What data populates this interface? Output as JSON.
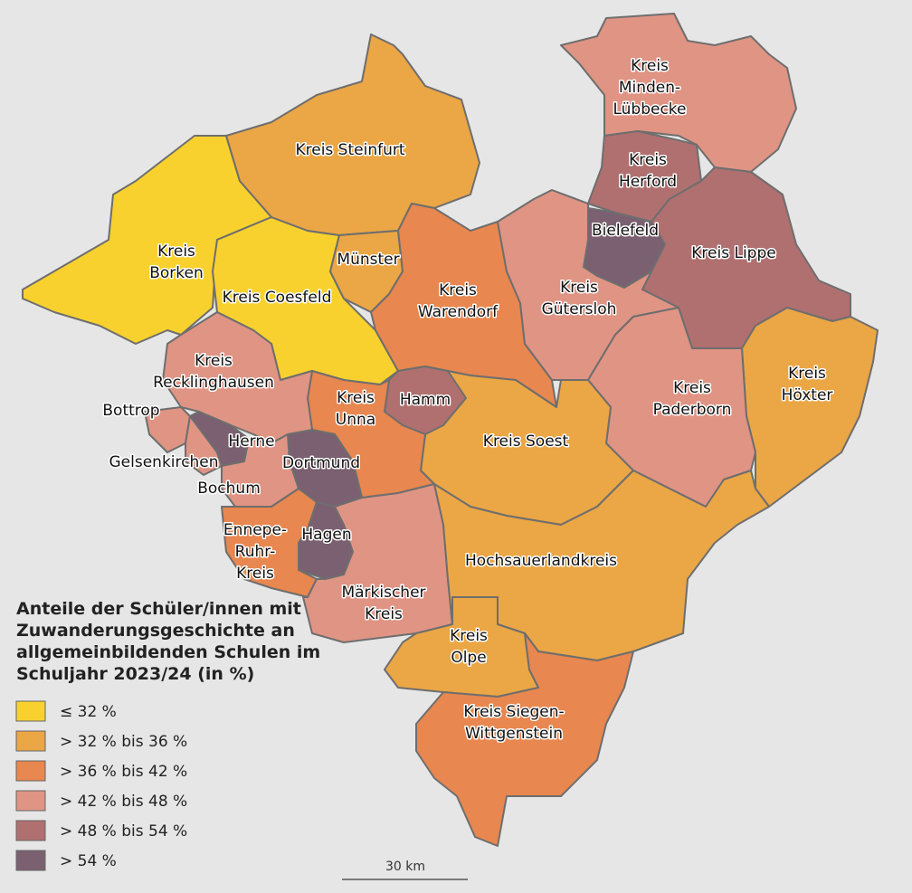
{
  "map": {
    "regions": [
      {
        "label": [
          "Kreis",
          "Borken"
        ],
        "color": "#f8d12e"
      },
      {
        "label": [
          "Kreis Coesfeld"
        ],
        "color": "#f8d12e"
      },
      {
        "label": [
          "Kreis Steinfurt"
        ],
        "color": "#eba645"
      },
      {
        "label": [
          "Münster"
        ],
        "color": "#eba645"
      },
      {
        "label": [
          "Kreis",
          "Warendorf"
        ],
        "color": "#e8874f"
      },
      {
        "label": [
          "Kreis",
          "Minden-",
          "Lübbecke"
        ],
        "color": "#e09484"
      },
      {
        "label": [
          "Kreis",
          "Herford"
        ],
        "color": "#b07070"
      },
      {
        "label": [
          "Bielefeld"
        ],
        "color": "#7a6070"
      },
      {
        "label": [
          "Kreis Lippe"
        ],
        "color": "#b07070"
      },
      {
        "label": [
          "Kreis",
          "Gütersloh"
        ],
        "color": "#e09484"
      },
      {
        "label": [
          "Kreis",
          "Höxter"
        ],
        "color": "#eba645"
      },
      {
        "label": [
          "Kreis",
          "Paderborn"
        ],
        "color": "#e09484"
      },
      {
        "label": [
          "Kreis Soest"
        ],
        "color": "#eba645"
      },
      {
        "label": [
          "Hamm"
        ],
        "color": "#b07070"
      },
      {
        "label": [
          "Kreis",
          "Unna"
        ],
        "color": "#e8874f"
      },
      {
        "label": [
          "Dortmund"
        ],
        "color": "#7a6070"
      },
      {
        "label": [
          "Kreis",
          "Recklinghausen"
        ],
        "color": "#e09484"
      },
      {
        "label": [
          "Bottrop"
        ],
        "color": "#e09484"
      },
      {
        "label": [
          "Gelsenkirchen"
        ],
        "color": "#e09484"
      },
      {
        "label": [
          "Herne"
        ],
        "color": "#7a6070"
      },
      {
        "label": [
          "Bochum"
        ],
        "color": "#e09484"
      },
      {
        "label": [
          "Ennepe-",
          "Ruhr-",
          "Kreis"
        ],
        "color": "#e8874f"
      },
      {
        "label": [
          "Hagen"
        ],
        "color": "#7a6070"
      },
      {
        "label": [
          "Märkischer",
          "Kreis"
        ],
        "color": "#e09484"
      },
      {
        "label": [
          "Hochsauerlandkreis"
        ],
        "color": "#eba645"
      },
      {
        "label": [
          "Kreis",
          "Olpe"
        ],
        "color": "#eba645"
      },
      {
        "label": [
          "Kreis Siegen-",
          "Wittgenstein"
        ],
        "color": "#e8874f"
      }
    ],
    "legend": {
      "title": [
        "Anteile der Schüler/innen mit",
        "Zuwanderungsgeschichte an",
        "allgemeinbildenden Schulen im",
        "Schuljahr 2023/24 (in %)"
      ],
      "classes": [
        {
          "label": "≤ 32 %",
          "color": "#f8d12e"
        },
        {
          "label": "> 32 % bis 36 %",
          "color": "#eba645"
        },
        {
          "label": "> 36 % bis 42 %",
          "color": "#e8874f"
        },
        {
          "label": "> 42 % bis 48 %",
          "color": "#e09484"
        },
        {
          "label": "> 48 % bis 54 %",
          "color": "#b07070"
        },
        {
          "label": "> 54 %",
          "color": "#7a6070"
        }
      ]
    },
    "scale_bar": "30 km"
  }
}
